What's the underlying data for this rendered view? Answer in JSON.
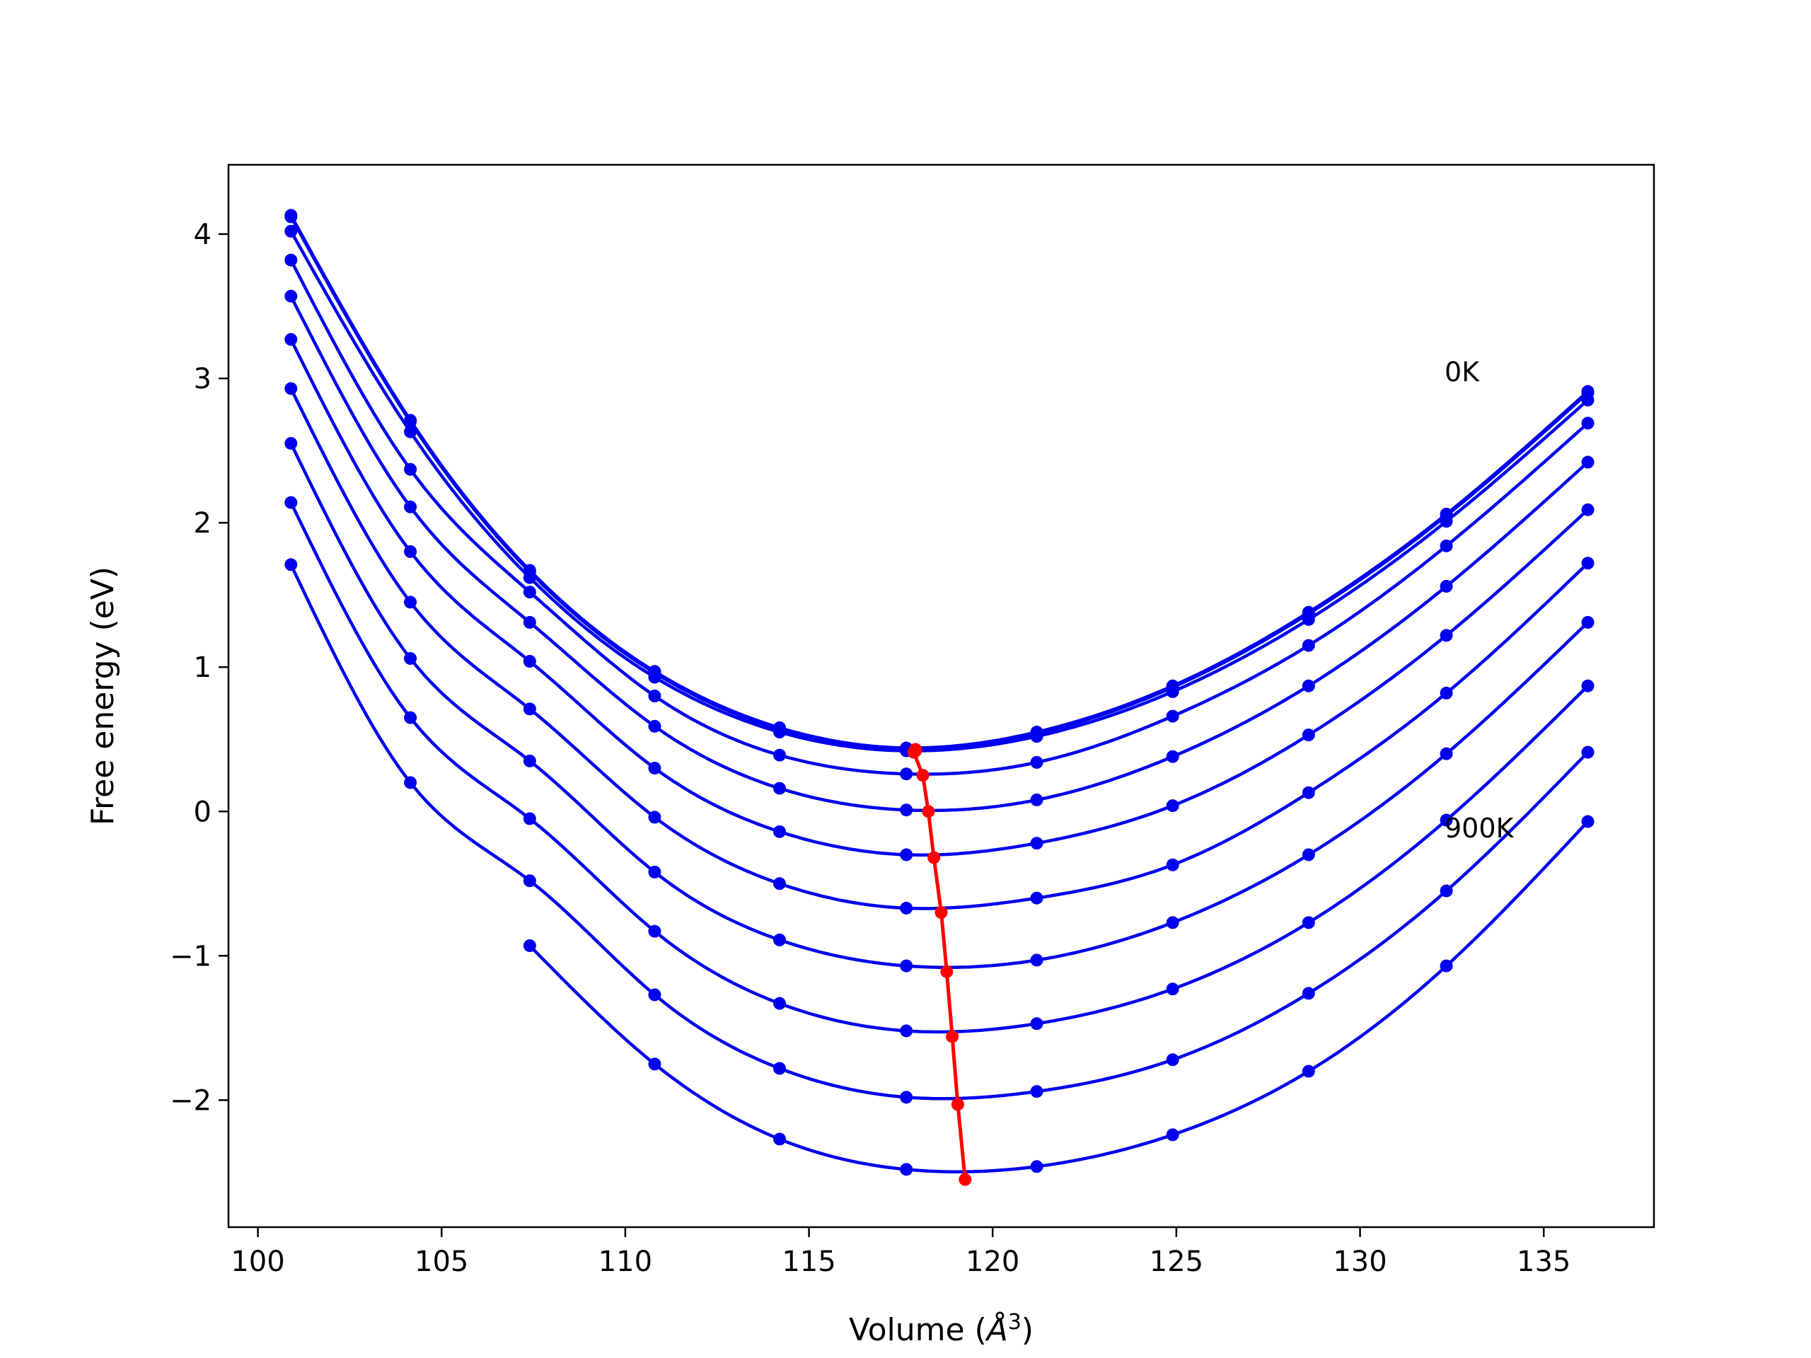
{
  "chart_data": {
    "type": "line",
    "title": "",
    "xlabel": "Volume (",
    "xlabel_unit": "Å",
    "xlabel_sup": "3",
    "xlabel_close": ")",
    "ylabel": "Free energy (eV)",
    "xlim": [
      99.2,
      138.0
    ],
    "ylim": [
      -2.88,
      4.48
    ],
    "xticks": [
      100,
      105,
      110,
      115,
      120,
      125,
      130,
      135
    ],
    "yticks": [
      -2,
      -1,
      0,
      1,
      2,
      3,
      4
    ],
    "xtick_labels": [
      "100",
      "105",
      "110",
      "115",
      "120",
      "125",
      "130",
      "135"
    ],
    "ytick_labels": [
      "−2",
      "−1",
      "0",
      "1",
      "2",
      "3",
      "4"
    ],
    "grid": false,
    "legend": "none",
    "curve_color": "#0000ee",
    "min_line_color": "#ff0000",
    "annotations": [
      {
        "text": "0K",
        "x": 132.3,
        "y": 2.98
      },
      {
        "text": "900K",
        "x": 132.3,
        "y": -0.18
      }
    ],
    "volumes": [
      100.9,
      104.15,
      107.4,
      110.8,
      114.2,
      117.65,
      121.2,
      124.9,
      128.6,
      132.35,
      136.2
    ],
    "series": [
      {
        "values": [
          4.13,
          2.71,
          1.67,
          0.97,
          0.58,
          0.44,
          0.55,
          0.87,
          1.38,
          2.06,
          2.91
        ],
        "minimum": [
          117.9,
          0.43
        ]
      },
      {
        "values": [
          4.12,
          2.7,
          1.66,
          0.96,
          0.57,
          0.43,
          0.54,
          0.86,
          1.37,
          2.05,
          2.9
        ],
        "minimum": [
          117.9,
          0.42
        ]
      },
      {
        "values": [
          4.02,
          2.63,
          1.62,
          0.93,
          0.55,
          0.42,
          0.52,
          0.83,
          1.33,
          2.01,
          2.85
        ],
        "minimum": [
          117.85,
          0.41
        ]
      },
      {
        "values": [
          3.82,
          2.37,
          1.52,
          0.8,
          0.39,
          0.26,
          0.34,
          0.66,
          1.15,
          1.84,
          2.69
        ],
        "minimum": [
          118.1,
          0.25
        ]
      },
      {
        "values": [
          3.57,
          2.11,
          1.31,
          0.59,
          0.16,
          0.01,
          0.08,
          0.38,
          0.87,
          1.56,
          2.42
        ],
        "minimum": [
          118.25,
          0.0
        ]
      },
      {
        "values": [
          3.27,
          1.8,
          1.04,
          0.3,
          -0.14,
          -0.3,
          -0.22,
          0.04,
          0.53,
          1.22,
          2.09
        ],
        "minimum": [
          118.4,
          -0.32
        ]
      },
      {
        "values": [
          2.93,
          1.45,
          0.71,
          -0.04,
          -0.5,
          -0.67,
          -0.6,
          -0.37,
          0.13,
          0.82,
          1.72
        ],
        "minimum": [
          118.6,
          -0.7
        ]
      },
      {
        "values": [
          2.55,
          1.06,
          0.35,
          -0.42,
          -0.89,
          -1.07,
          -1.03,
          -0.77,
          -0.3,
          0.4,
          1.31
        ],
        "minimum": [
          118.75,
          -1.11
        ]
      },
      {
        "values": [
          2.14,
          0.65,
          -0.05,
          -0.83,
          -1.33,
          -1.52,
          -1.47,
          -1.23,
          -0.77,
          -0.06,
          0.87
        ],
        "minimum": [
          118.9,
          -1.56
        ]
      },
      {
        "values": [
          1.71,
          0.2,
          -0.48,
          -1.27,
          -1.78,
          -1.98,
          -1.94,
          -1.72,
          -1.26,
          -0.55,
          0.41
        ],
        "minimum": [
          119.05,
          -2.03
        ]
      },
      {
        "values": [
          null,
          null,
          -0.93,
          -1.75,
          -2.27,
          -2.48,
          -2.46,
          -2.24,
          -1.8,
          -1.07,
          -0.07
        ],
        "minimum": [
          119.25,
          -2.55
        ]
      }
    ]
  }
}
